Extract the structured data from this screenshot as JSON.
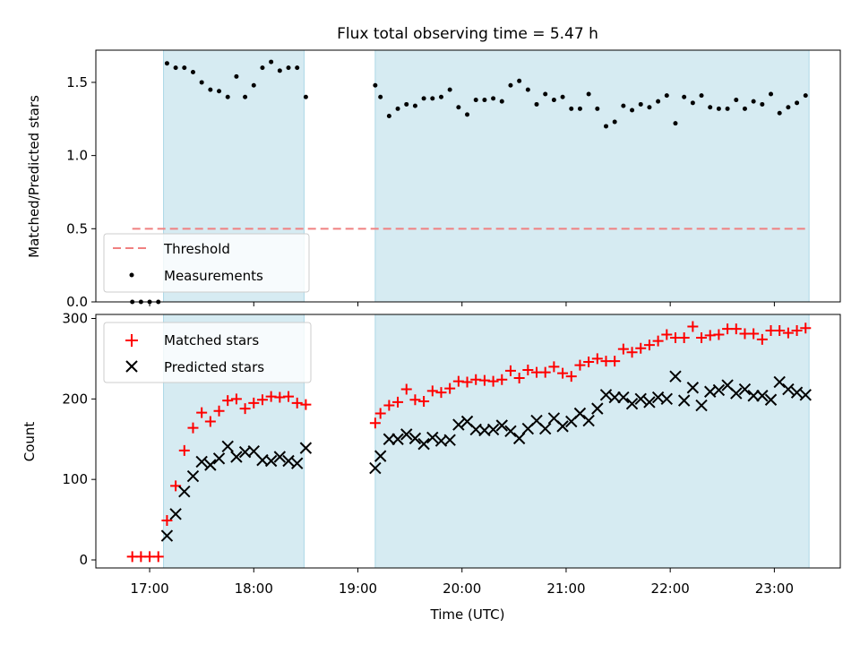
{
  "chart_data": [
    {
      "type": "scatter",
      "title": "Flux total observing time = 5.47 h",
      "ylabel": "Matched/Predicted stars",
      "xlabel": "",
      "ylim": [
        0,
        1.72
      ],
      "yticks": [
        0.0,
        0.5,
        1.0,
        1.5
      ],
      "ytick_labels": [
        "0.0",
        "0.5",
        "1.0",
        "1.5"
      ],
      "threshold": {
        "name": "Threshold",
        "value": 0.5,
        "x_range": [
          "16:50",
          "23:20"
        ],
        "color": "#f08080"
      },
      "shaded_intervals": [
        [
          "17:08",
          "18:29"
        ],
        [
          "19:10",
          "23:20"
        ]
      ],
      "legend": {
        "placement": "lower-left",
        "entries": [
          "Threshold",
          "Measurements"
        ]
      },
      "series": [
        {
          "name": "Measurements",
          "color": "#000000",
          "x": [
            "16:50",
            "16:55",
            "17:00",
            "17:05",
            "17:10",
            "17:15",
            "17:20",
            "17:25",
            "17:30",
            "17:35",
            "17:40",
            "17:45",
            "17:50",
            "17:55",
            "18:00",
            "18:05",
            "18:10",
            "18:15",
            "18:20",
            "18:25",
            "18:30",
            "19:10",
            "19:13",
            "19:18",
            "19:23",
            "19:28",
            "19:33",
            "19:38",
            "19:43",
            "19:48",
            "19:53",
            "19:58",
            "20:03",
            "20:08",
            "20:13",
            "20:18",
            "20:23",
            "20:28",
            "20:33",
            "20:38",
            "20:43",
            "20:48",
            "20:53",
            "20:58",
            "21:03",
            "21:08",
            "21:13",
            "21:18",
            "21:23",
            "21:28",
            "21:33",
            "21:38",
            "21:43",
            "21:48",
            "21:53",
            "21:58",
            "22:03",
            "22:08",
            "22:13",
            "22:18",
            "22:23",
            "22:28",
            "22:33",
            "22:38",
            "22:43",
            "22:48",
            "22:53",
            "22:58",
            "23:03",
            "23:08",
            "23:13",
            "23:18"
          ],
          "y": [
            0,
            0,
            0,
            0,
            1.63,
            1.6,
            1.6,
            1.57,
            1.5,
            1.45,
            1.44,
            1.4,
            1.54,
            1.4,
            1.48,
            1.6,
            1.64,
            1.58,
            1.6,
            1.6,
            1.4,
            1.48,
            1.4,
            1.27,
            1.32,
            1.35,
            1.34,
            1.39,
            1.39,
            1.4,
            1.45,
            1.33,
            1.28,
            1.38,
            1.38,
            1.39,
            1.37,
            1.48,
            1.51,
            1.45,
            1.35,
            1.42,
            1.38,
            1.4,
            1.32,
            1.32,
            1.42,
            1.32,
            1.2,
            1.23,
            1.34,
            1.31,
            1.35,
            1.33,
            1.37,
            1.41,
            1.22,
            1.4,
            1.36,
            1.41,
            1.33,
            1.32,
            1.32,
            1.38,
            1.32,
            1.37,
            1.35,
            1.42,
            1.29,
            1.33,
            1.36,
            1.41
          ]
        }
      ]
    },
    {
      "type": "scatter",
      "title": "",
      "ylabel": "Count",
      "xlabel": "Time (UTC)",
      "ylim": [
        -10,
        305
      ],
      "yticks": [
        0,
        100,
        200,
        300
      ],
      "ytick_labels": [
        "0",
        "100",
        "200",
        "300"
      ],
      "xlim": [
        "16:29",
        "23:38"
      ],
      "xticks": [
        "17:00",
        "18:00",
        "19:00",
        "20:00",
        "21:00",
        "22:00",
        "23:00"
      ],
      "xtick_labels": [
        "17:00",
        "18:00",
        "19:00",
        "20:00",
        "21:00",
        "22:00",
        "23:00"
      ],
      "shaded_intervals": [
        [
          "17:08",
          "18:29"
        ],
        [
          "19:10",
          "23:20"
        ]
      ],
      "legend": {
        "placement": "upper-left",
        "entries": [
          "Matched stars",
          "Predicted stars"
        ]
      },
      "series": [
        {
          "name": "Matched stars",
          "marker": "+",
          "color": "#ff0000",
          "x": [
            "16:50",
            "16:55",
            "17:00",
            "17:05",
            "17:10",
            "17:15",
            "17:20",
            "17:25",
            "17:30",
            "17:35",
            "17:40",
            "17:45",
            "17:50",
            "17:55",
            "18:00",
            "18:05",
            "18:10",
            "18:15",
            "18:20",
            "18:25",
            "18:30",
            "19:10",
            "19:13",
            "19:18",
            "19:23",
            "19:28",
            "19:33",
            "19:38",
            "19:43",
            "19:48",
            "19:53",
            "19:58",
            "20:03",
            "20:08",
            "20:13",
            "20:18",
            "20:23",
            "20:28",
            "20:33",
            "20:38",
            "20:43",
            "20:48",
            "20:53",
            "20:58",
            "21:03",
            "21:08",
            "21:13",
            "21:18",
            "21:23",
            "21:28",
            "21:33",
            "21:38",
            "21:43",
            "21:48",
            "21:53",
            "21:58",
            "22:03",
            "22:08",
            "22:13",
            "22:18",
            "22:23",
            "22:28",
            "22:33",
            "22:38",
            "22:43",
            "22:48",
            "22:53",
            "22:58",
            "23:03",
            "23:08",
            "23:13",
            "23:18"
          ],
          "y": [
            4,
            4,
            4,
            4,
            49,
            92,
            136,
            164,
            183,
            172,
            185,
            198,
            200,
            188,
            195,
            199,
            203,
            202,
            203,
            195,
            193,
            170,
            182,
            192,
            196,
            212,
            199,
            197,
            210,
            208,
            213,
            222,
            221,
            224,
            223,
            222,
            224,
            235,
            226,
            236,
            233,
            233,
            240,
            232,
            228,
            242,
            246,
            250,
            247,
            247,
            262,
            258,
            263,
            267,
            272,
            280,
            276,
            276,
            290,
            276,
            279,
            280,
            287,
            287,
            281,
            281,
            274,
            285,
            285,
            282,
            285,
            288
          ]
        },
        {
          "name": "Predicted stars",
          "marker": "x",
          "color": "#000000",
          "x": [
            "17:10",
            "17:15",
            "17:20",
            "17:25",
            "17:30",
            "17:35",
            "17:40",
            "17:45",
            "17:50",
            "17:55",
            "18:00",
            "18:05",
            "18:10",
            "18:15",
            "18:20",
            "18:25",
            "18:30",
            "19:10",
            "19:13",
            "19:18",
            "19:23",
            "19:28",
            "19:33",
            "19:38",
            "19:43",
            "19:48",
            "19:53",
            "19:58",
            "20:03",
            "20:08",
            "20:13",
            "20:18",
            "20:23",
            "20:28",
            "20:33",
            "20:38",
            "20:43",
            "20:48",
            "20:53",
            "20:58",
            "21:03",
            "21:08",
            "21:13",
            "21:18",
            "21:23",
            "21:28",
            "21:33",
            "21:38",
            "21:43",
            "21:48",
            "21:53",
            "21:58",
            "22:03",
            "22:08",
            "22:13",
            "22:18",
            "22:23",
            "22:28",
            "22:33",
            "22:38",
            "22:43",
            "22:48",
            "22:53",
            "22:58",
            "23:03",
            "23:08",
            "23:13",
            "23:18"
          ],
          "y": [
            30,
            57,
            85,
            104,
            122,
            118,
            126,
            141,
            128,
            134,
            135,
            124,
            123,
            128,
            123,
            120,
            139,
            114,
            129,
            150,
            150,
            156,
            151,
            144,
            152,
            148,
            149,
            168,
            172,
            162,
            161,
            162,
            167,
            160,
            151,
            163,
            173,
            163,
            176,
            166,
            172,
            182,
            173,
            188,
            205,
            202,
            202,
            194,
            200,
            196,
            202,
            200,
            228,
            198,
            214,
            192,
            209,
            211,
            217,
            207,
            212,
            204,
            204,
            199,
            221,
            212,
            208,
            205
          ]
        }
      ]
    }
  ]
}
